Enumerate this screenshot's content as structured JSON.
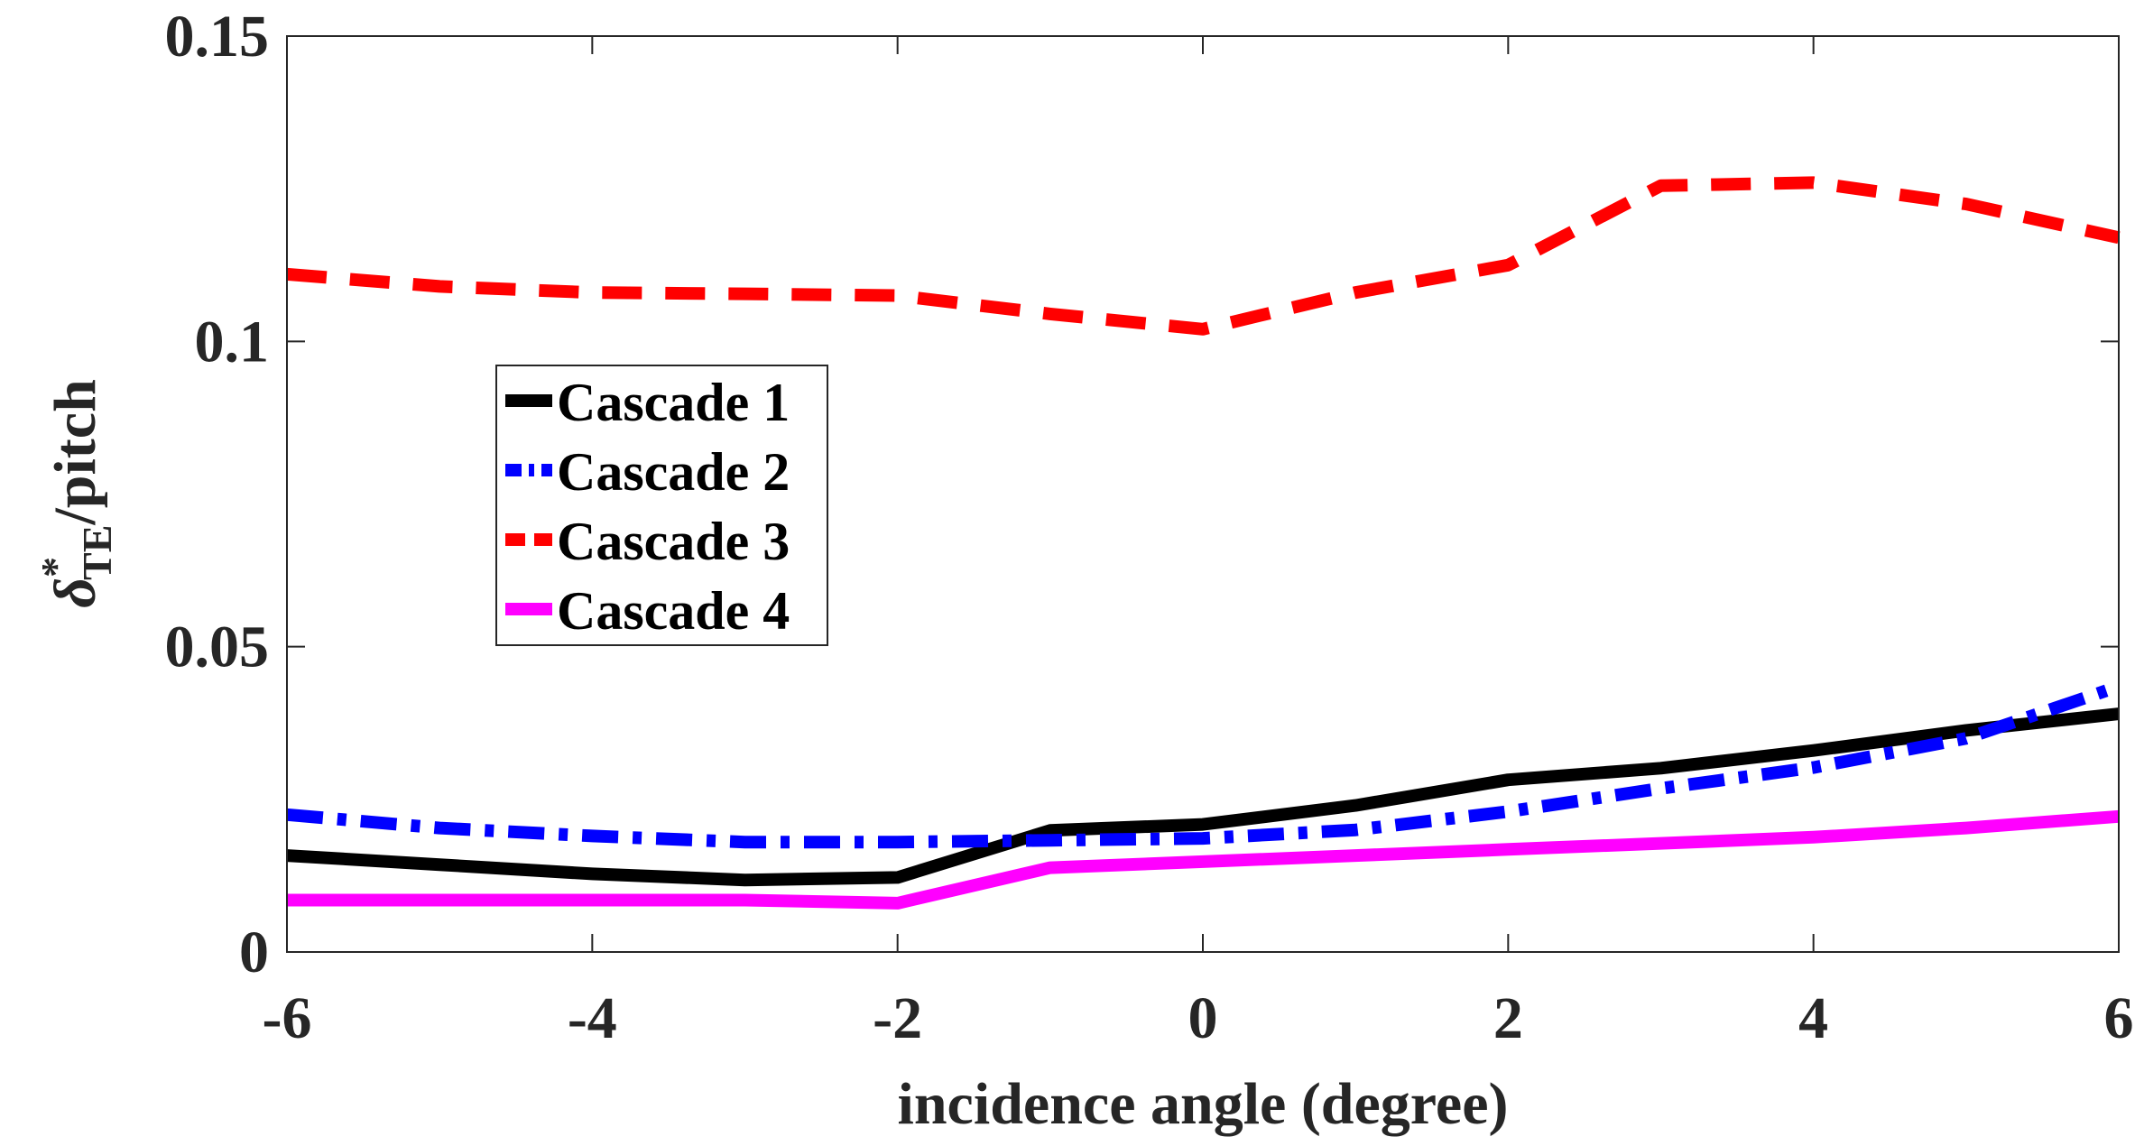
{
  "chart_data": {
    "type": "line",
    "title": "",
    "xlabel": "incidence angle (degree)",
    "ylabel": {
      "symbol": "δ",
      "superscript": "*",
      "subscript": "TE",
      "suffix": "/pitch"
    },
    "xlim": [
      -6,
      6
    ],
    "ylim": [
      0,
      0.15
    ],
    "x_ticks": [
      -6,
      -4,
      -2,
      0,
      2,
      4,
      6
    ],
    "x_tick_labels": [
      "-6",
      "-4",
      "-2",
      "0",
      "2",
      "4",
      "6"
    ],
    "y_ticks": [
      0,
      0.05,
      0.1,
      0.15
    ],
    "y_tick_labels": [
      "0",
      "0.05",
      "0.1",
      "0.15"
    ],
    "grid": false,
    "legend_position": "center-left",
    "x": [
      -6,
      -5,
      -4,
      -3,
      -2,
      -1,
      0,
      1,
      2,
      3,
      4,
      5,
      6
    ],
    "series": [
      {
        "name": "Cascade 1",
        "color": "#000000",
        "style": "solid",
        "values": [
          0.0158,
          0.0143,
          0.0128,
          0.0118,
          0.0122,
          0.0199,
          0.0209,
          0.024,
          0.0282,
          0.0301,
          0.033,
          0.0363,
          0.039
        ]
      },
      {
        "name": "Cascade 2",
        "color": "#0000FF",
        "style": "dashdot",
        "values": [
          0.0225,
          0.0203,
          0.019,
          0.018,
          0.018,
          0.0183,
          0.0186,
          0.02,
          0.023,
          0.0268,
          0.0302,
          0.035,
          0.0435
        ]
      },
      {
        "name": "Cascade 3",
        "color": "#FF0000",
        "style": "dashed",
        "values": [
          0.111,
          0.109,
          0.108,
          0.1078,
          0.1075,
          0.1045,
          0.102,
          0.108,
          0.1125,
          0.1255,
          0.126,
          0.1225,
          0.117
        ]
      },
      {
        "name": "Cascade 4",
        "color": "#FF00FF",
        "style": "solid",
        "values": [
          0.0085,
          0.0085,
          0.0085,
          0.0085,
          0.008,
          0.0138,
          0.0148,
          0.0158,
          0.0168,
          0.0178,
          0.0188,
          0.0203,
          0.0222
        ]
      }
    ]
  }
}
